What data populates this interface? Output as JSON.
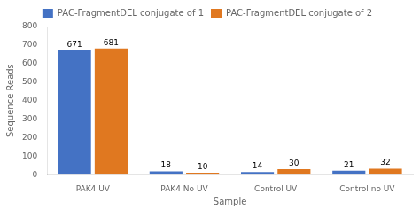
{
  "chart_data": {
    "type": "bar",
    "categories": [
      "PAK4 UV",
      "PAK4 No UV",
      "Control UV",
      "Control no UV"
    ],
    "series": [
      {
        "name": "PAC-FragmentDEL conjugate of 1",
        "color": "#4472C4",
        "values": [
          671,
          18,
          14,
          21
        ]
      },
      {
        "name": "PAC-FragmentDEL conjugate of 2",
        "color": "#E07820",
        "values": [
          681,
          10,
          30,
          32
        ]
      }
    ],
    "x_label": "Sample",
    "y_label": "Sequence Reads",
    "ylim": [
      0,
      800
    ],
    "yticks": [
      0,
      100,
      200,
      300,
      400,
      500,
      600,
      700,
      800
    ],
    "grid": false,
    "legend": "top",
    "data_labels": true
  }
}
